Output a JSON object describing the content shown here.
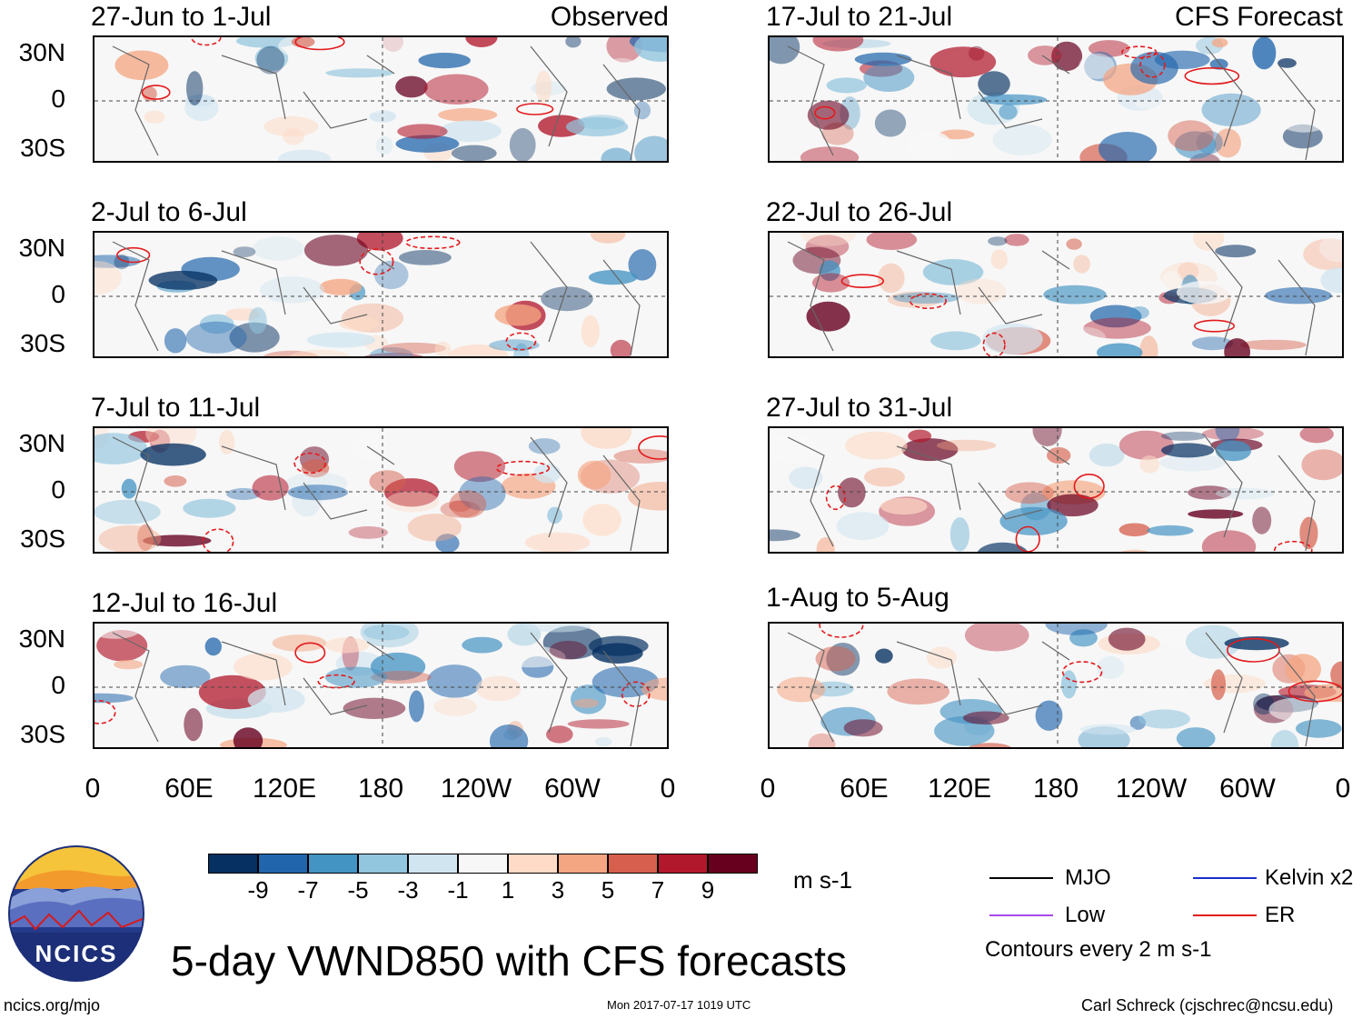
{
  "title": "5-day VWND850 with CFS forecasts",
  "units": "m s-1",
  "logo": {
    "text": "NCICS"
  },
  "footer": {
    "url": "ncics.org/mjo",
    "timestamp": "Mon 2017-07-17 1019 UTC",
    "author": "Carl Schreck (cjschrec@ncsu.edu)"
  },
  "columns": {
    "left_tag": "Observed",
    "right_tag": "CFS Forecast"
  },
  "panels": {
    "left": [
      {
        "period": "27-Jun to 1-Jul"
      },
      {
        "period": "2-Jul to 6-Jul"
      },
      {
        "period": "7-Jul to 11-Jul"
      },
      {
        "period": "12-Jul to 16-Jul"
      }
    ],
    "right": [
      {
        "period": "17-Jul to 21-Jul"
      },
      {
        "period": "22-Jul to 26-Jul"
      },
      {
        "period": "27-Jul to 31-Jul"
      },
      {
        "period": "1-Aug to 5-Aug"
      }
    ]
  },
  "lat_labels": [
    "30N",
    "0",
    "30S"
  ],
  "lon_labels": [
    "0",
    "60E",
    "120E",
    "180",
    "120W",
    "60W",
    "0"
  ],
  "colorbar": {
    "colors": [
      "#053061",
      "#2166ac",
      "#4393c3",
      "#92c5de",
      "#d1e5f0",
      "#f7f7f7",
      "#fddbc7",
      "#f4a582",
      "#d6604d",
      "#b2182b",
      "#67001f"
    ],
    "ticks": [
      "-9",
      "-7",
      "-5",
      "-3",
      "-1",
      "1",
      "3",
      "5",
      "7",
      "9"
    ]
  },
  "legend": {
    "items": [
      {
        "label": "MJO",
        "color": "#000000"
      },
      {
        "label": "Kelvin x2",
        "color": "#1a2fcc"
      },
      {
        "label": "Low",
        "color": "#a64ae6"
      },
      {
        "label": "ER",
        "color": "#e31a1c"
      }
    ],
    "note": "Contours every 2 m s-1"
  }
}
